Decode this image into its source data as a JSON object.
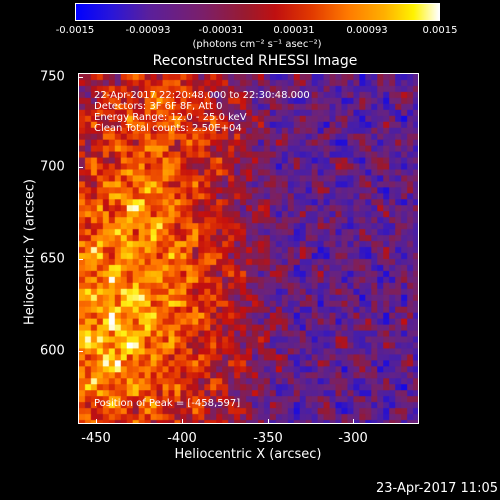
{
  "colorbar": {
    "tick_labels": [
      "-0.0015",
      "-0.00093",
      "-0.00031",
      "0.00031",
      "0.00093",
      "0.0015"
    ],
    "units": "(photons cm⁻² s⁻¹ asec⁻²)"
  },
  "plot": {
    "title": "Reconstructed RHESSI Image",
    "info": {
      "time_range": "22-Apr-2017 22:20:48.000 to 22:30:48.000",
      "detectors": "Detectors: 3F 6F 8F, Att 0",
      "energy_range": "Energy Range: 12.0 - 25.0 keV",
      "clean_counts": "Clean    Total counts: 2.50E+04"
    },
    "peak_position": "Position of Peak = [-458,597]",
    "x_axis": {
      "label": "Heliocentric X (arcsec)",
      "ticks": [
        "-450",
        "-400",
        "-350",
        "-300"
      ],
      "range": [
        -458,
        -262
      ]
    },
    "y_axis": {
      "label": "Heliocentric Y (arcsec)",
      "ticks": [
        "600",
        "650",
        "700",
        "750"
      ],
      "range": [
        555,
        755
      ]
    }
  },
  "footer": {
    "timestamp": "23-Apr-2017 11:05"
  },
  "colors": {
    "background": "#000000",
    "negative": "#0000ff",
    "positive": "#ffffff"
  }
}
